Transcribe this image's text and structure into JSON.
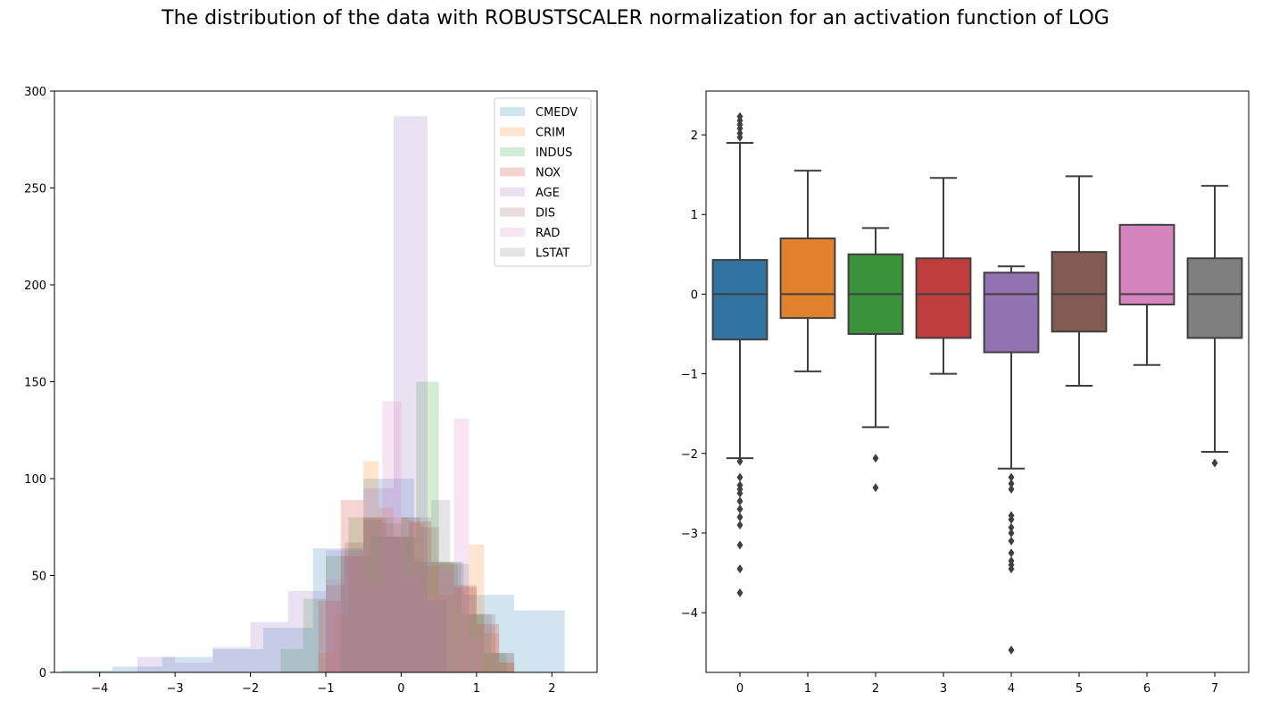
{
  "title": "The distribution of the data with ROBUSTSCALER normalization for an activation function of LOG",
  "chart_data": [
    {
      "type": "histogram",
      "subplot": "left",
      "xlim": [
        -4.6,
        2.6
      ],
      "ylim": [
        0,
        300
      ],
      "xticks": [
        -4,
        -3,
        -2,
        -1,
        0,
        1,
        2
      ],
      "yticks": [
        0,
        50,
        100,
        150,
        200,
        250,
        300
      ],
      "grid": false,
      "legend_position": "top-right",
      "series": [
        {
          "name": "CMEDV",
          "color": "#1f77b4",
          "bins": [
            [
              -4.5,
              -3.83,
              1
            ],
            [
              -3.83,
              -3.17,
              3
            ],
            [
              -3.17,
              -2.5,
              8
            ],
            [
              -2.5,
              -1.83,
              12
            ],
            [
              -1.83,
              -1.17,
              23
            ],
            [
              -1.17,
              -0.5,
              64
            ],
            [
              -0.5,
              0.17,
              100
            ],
            [
              0.17,
              0.83,
              57
            ],
            [
              0.83,
              1.5,
              40
            ],
            [
              1.5,
              2.17,
              32
            ]
          ]
        },
        {
          "name": "CRIM",
          "color": "#ff7f0e",
          "bins": [
            [
              -1.1,
              -0.9,
              10
            ],
            [
              -0.9,
              -0.7,
              30
            ],
            [
              -0.7,
              -0.5,
              60
            ],
            [
              -0.5,
              -0.3,
              109
            ],
            [
              -0.3,
              -0.1,
              85
            ],
            [
              -0.1,
              0.1,
              80
            ],
            [
              0.1,
              0.3,
              77
            ],
            [
              0.3,
              0.5,
              55
            ],
            [
              0.5,
              0.7,
              40
            ],
            [
              0.7,
              0.9,
              45
            ],
            [
              0.9,
              1.1,
              66
            ],
            [
              1.1,
              1.3,
              20
            ],
            [
              1.3,
              1.5,
              5
            ]
          ]
        },
        {
          "name": "INDUS",
          "color": "#2ca02c",
          "bins": [
            [
              -1.6,
              -1.3,
              12
            ],
            [
              -1.3,
              -1.0,
              38
            ],
            [
              -1.0,
              -0.7,
              60
            ],
            [
              -0.7,
              -0.4,
              80
            ],
            [
              -0.4,
              -0.1,
              80
            ],
            [
              -0.1,
              0.2,
              70
            ],
            [
              0.2,
              0.5,
              150
            ],
            [
              0.5,
              0.8,
              57
            ],
            [
              0.8,
              1.1,
              30
            ],
            [
              1.1,
              1.4,
              10
            ]
          ]
        },
        {
          "name": "NOX",
          "color": "#d62728",
          "bins": [
            [
              -1.1,
              -0.8,
              37
            ],
            [
              -0.8,
              -0.5,
              89
            ],
            [
              -0.5,
              -0.2,
              80
            ],
            [
              -0.2,
              0.1,
              70
            ],
            [
              0.1,
              0.4,
              78
            ],
            [
              0.4,
              0.7,
              57
            ],
            [
              0.7,
              1.0,
              44
            ],
            [
              1.0,
              1.3,
              25
            ],
            [
              1.3,
              1.5,
              5
            ]
          ]
        },
        {
          "name": "AGE",
          "color": "#9467bd",
          "bins": [
            [
              -3.5,
              -3.0,
              8
            ],
            [
              -3.0,
              -2.5,
              5
            ],
            [
              -2.5,
              -2.0,
              13
            ],
            [
              -2.0,
              -1.5,
              26
            ],
            [
              -1.5,
              -1.0,
              42
            ],
            [
              -1.0,
              -0.5,
              63
            ],
            [
              -0.5,
              -0.1,
              95
            ],
            [
              -0.1,
              0.35,
              287
            ],
            [
              0.35,
              0.6,
              37
            ]
          ]
        },
        {
          "name": "DIS",
          "color": "#8c564b",
          "bins": [
            [
              -1.0,
              -0.75,
              45
            ],
            [
              -0.75,
              -0.5,
              67
            ],
            [
              -0.5,
              -0.25,
              79
            ],
            [
              -0.25,
              0.0,
              77
            ],
            [
              0.0,
              0.25,
              80
            ],
            [
              0.25,
              0.5,
              75
            ],
            [
              0.5,
              0.75,
              56
            ],
            [
              0.75,
              1.0,
              45
            ],
            [
              1.0,
              1.25,
              30
            ],
            [
              1.25,
              1.5,
              10
            ]
          ]
        },
        {
          "name": "RAD",
          "color": "#e377c2",
          "bins": [
            [
              -1.0,
              -0.75,
              48
            ],
            [
              -0.75,
              -0.5,
              60
            ],
            [
              -0.5,
              -0.25,
              45
            ],
            [
              -0.25,
              0.0,
              140
            ],
            [
              0.0,
              0.25,
              50
            ],
            [
              0.25,
              0.5,
              40
            ],
            [
              0.5,
              0.7,
              53
            ],
            [
              0.7,
              0.9,
              131
            ],
            [
              0.9,
              1.1,
              18
            ]
          ]
        },
        {
          "name": "LSTAT",
          "color": "#7f7f7f",
          "bins": [
            [
              -0.8,
              -0.4,
              60
            ],
            [
              -0.4,
              0.0,
              70
            ],
            [
              0.0,
              0.4,
              80
            ],
            [
              0.4,
              0.65,
              89
            ],
            [
              0.65,
              0.9,
              56
            ],
            [
              0.9,
              1.2,
              30
            ],
            [
              1.2,
              1.5,
              10
            ]
          ]
        }
      ]
    },
    {
      "type": "box",
      "subplot": "right",
      "categories": [
        "0",
        "1",
        "2",
        "3",
        "4",
        "5",
        "6",
        "7"
      ],
      "ylim": [
        -4.75,
        2.55
      ],
      "yticks": [
        -4,
        -3,
        -2,
        -1,
        0,
        1,
        2
      ],
      "grid": false,
      "boxes": [
        {
          "q1": -0.57,
          "median": 0.0,
          "q3": 0.43,
          "whisker_low": -2.06,
          "whisker_high": 1.9,
          "outliers": [
            2.23,
            2.18,
            2.13,
            2.08,
            2.02,
            1.97,
            -2.1,
            -2.3,
            -2.4,
            -2.45,
            -2.5,
            -2.6,
            -2.7,
            -2.8,
            -2.9,
            -3.15,
            -3.45,
            -3.75
          ],
          "color": "#3274a1"
        },
        {
          "q1": -0.3,
          "median": 0.0,
          "q3": 0.7,
          "whisker_low": -0.97,
          "whisker_high": 1.55,
          "outliers": [],
          "color": "#e1812c"
        },
        {
          "q1": -0.5,
          "median": 0.0,
          "q3": 0.5,
          "whisker_low": -1.67,
          "whisker_high": 0.83,
          "outliers": [
            -2.06,
            -2.43
          ],
          "color": "#3a923a"
        },
        {
          "q1": -0.55,
          "median": 0.0,
          "q3": 0.45,
          "whisker_low": -1.0,
          "whisker_high": 1.46,
          "outliers": [],
          "color": "#c03d3e"
        },
        {
          "q1": -0.73,
          "median": 0.0,
          "q3": 0.27,
          "whisker_low": -2.19,
          "whisker_high": 0.35,
          "outliers": [
            -2.3,
            -2.38,
            -2.45,
            -2.78,
            -2.83,
            -2.93,
            -3.0,
            -3.1,
            -3.25,
            -3.35,
            -3.4,
            -3.45,
            -4.47
          ],
          "color": "#9372b2"
        },
        {
          "q1": -0.47,
          "median": 0.0,
          "q3": 0.53,
          "whisker_low": -1.15,
          "whisker_high": 1.48,
          "outliers": [],
          "color": "#845b53"
        },
        {
          "q1": -0.13,
          "median": 0.0,
          "q3": 0.87,
          "whisker_low": -0.89,
          "whisker_high": 0.87,
          "outliers": [],
          "color": "#d684bd"
        },
        {
          "q1": -0.55,
          "median": 0.0,
          "q3": 0.45,
          "whisker_low": -1.98,
          "whisker_high": 1.36,
          "outliers": [
            -2.12
          ],
          "color": "#7f7f7f"
        }
      ]
    }
  ]
}
